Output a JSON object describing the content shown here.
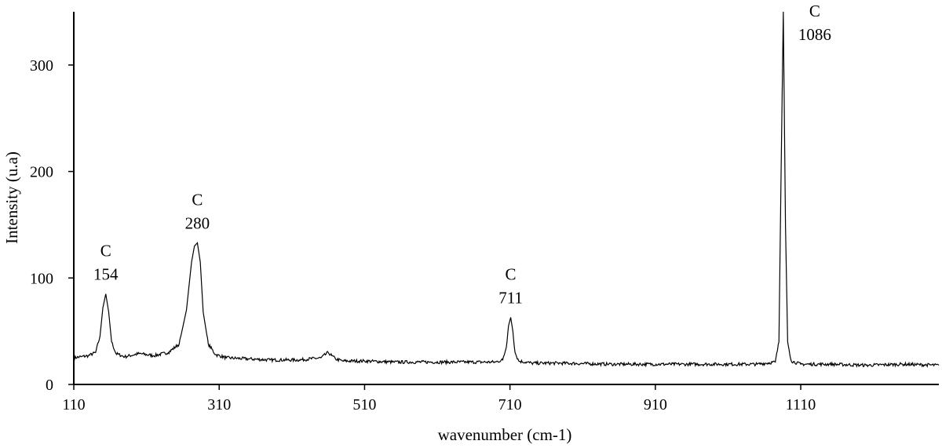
{
  "chart_data": {
    "type": "line",
    "title": "",
    "xlabel": "wavenumber (cm-1)",
    "ylabel": "Intensity (u.a)",
    "xlim": [
      110,
      1300
    ],
    "ylim": [
      0,
      350
    ],
    "x_ticks": [
      110,
      310,
      510,
      710,
      910,
      1110
    ],
    "y_ticks": [
      0,
      100,
      200,
      300
    ],
    "x_tick_labels": [
      "110",
      "310",
      "510",
      "710",
      "910",
      "1110"
    ],
    "y_tick_labels": [
      "0",
      "100",
      "200",
      "300"
    ],
    "grid": false,
    "legend": "none",
    "line_color": "#000000",
    "series": [
      {
        "x": [
          110,
          120,
          130,
          140,
          146,
          150,
          154,
          158,
          162,
          168,
          180,
          200,
          220,
          240,
          255,
          265,
          272,
          276,
          280,
          284,
          288,
          295,
          305,
          320,
          350,
          380,
          420,
          450,
          460,
          465,
          470,
          480,
          510,
          550,
          600,
          650,
          690,
          700,
          705,
          708,
          711,
          714,
          717,
          722,
          740,
          780,
          850,
          950,
          1050,
          1075,
          1080,
          1083,
          1086,
          1089,
          1092,
          1097,
          1110,
          1150,
          1200,
          1250,
          1300
        ],
        "y": [
          25,
          26,
          27,
          30,
          45,
          72,
          85,
          68,
          40,
          29,
          26,
          29,
          27,
          30,
          38,
          70,
          115,
          130,
          133,
          115,
          68,
          38,
          28,
          25,
          24,
          23,
          23,
          25,
          30,
          27,
          24,
          22,
          22,
          21,
          21,
          21,
          21,
          23,
          35,
          55,
          63,
          50,
          30,
          22,
          20,
          20,
          19,
          19,
          19,
          21,
          40,
          200,
          350,
          150,
          40,
          22,
          19,
          19,
          18,
          19,
          18
        ]
      }
    ],
    "annotations": [
      {
        "x": 154,
        "y": 85,
        "line1": "C",
        "line2": "154"
      },
      {
        "x": 280,
        "y": 133,
        "line1": "C",
        "line2": "280"
      },
      {
        "x": 711,
        "y": 63,
        "line1": "C",
        "line2": "711"
      },
      {
        "x": 1086,
        "y": 350,
        "line1": "C",
        "line2": "1086"
      }
    ]
  }
}
